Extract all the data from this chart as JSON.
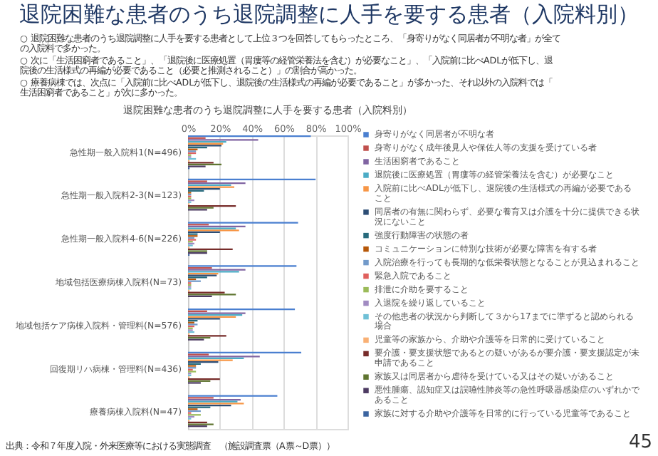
{
  "chart_data": {
    "type": "bar",
    "orientation": "horizontal",
    "title": "退院困難な患者のうち退院調整に人手を要する患者（入院料別）",
    "subtitle": "退院困難な患者のうち退院調整に人手を要する患者（入院料別）",
    "annotations": [
      "○ 退院困難な患者のうち退院調整に人手を要する患者として上位３つを回答してもらったところ、「身寄りがなく同居者が不明な者」が全ての入院料で多かった。",
      "○ 次に「生活困窮者であること」、「退院後に医療処置（胃瘻等の経管栄養法を含む）が必要なこと」、「入院前に比べADLが低下し、退院後の生活様式の再編が必要であること（必要と推測されること）」の割合が高かった。",
      "○ 療養病棟では、次点に「入院前に比べADLが低下し、退院後の生活様式の再編が必要であること」が多かった、それ以外の入院料では「生活困窮者であること」が次に多かった。",
      "出典：令和７年度入院・外来医療等における実態調査　（施設調査票（A票～D票））",
      "45"
    ],
    "categories": [
      "急性期一般入院料1(N=496)",
      "急性期一般入院料2-3(N=123)",
      "急性期一般入院料4-6(N=226)",
      "地域包括医療病棟入院料(N=73)",
      "地域包括ケア病棟入院料・管理料(N=576)",
      "回復期リハ病棟・管理料(N=436)",
      "療養病棟入院料(N=47)"
    ],
    "xlim": [
      0,
      100
    ],
    "xticks": [
      {
        "value": 0,
        "label": "0%"
      },
      {
        "value": 20,
        "label": "20%"
      },
      {
        "value": 40,
        "label": "40%"
      },
      {
        "value": 60,
        "label": "60%"
      },
      {
        "value": 80,
        "label": "80%"
      },
      {
        "value": 100,
        "label": "100%"
      }
    ],
    "grid": "x",
    "legend": "right",
    "series": [
      {
        "name": "身寄りがなく同居者が不明な者",
        "color": "#4a7fd0",
        "values": [
          77,
          80,
          69,
          68,
          67,
          71,
          56
        ]
      },
      {
        "name": "身寄りがなく成年後見人や保佐人等の支援を受けている者",
        "color": "#c0504d",
        "values": [
          11,
          12,
          13,
          15,
          12,
          13,
          16
        ]
      },
      {
        "name": "生活困窮者であること",
        "color": "#8064a2",
        "values": [
          44,
          36,
          36,
          36,
          36,
          45,
          33
        ]
      },
      {
        "name": "退院後に医療処置（胃瘻等の経管栄養法を含む）が必要なこと",
        "color": "#4bacc6",
        "values": [
          24,
          27,
          30,
          32,
          34,
          35,
          31
        ]
      },
      {
        "name": "入院前に比べADLが低下し、退院後の生活様式の再編が必要であること",
        "color": "#f79646",
        "values": [
          22,
          29,
          32,
          19,
          30,
          28,
          35
        ]
      },
      {
        "name": "同居者の有無に関わらず、必要な養育又は介護を十分に提供できる状況にないこと",
        "color": "#2c4d75",
        "values": [
          21,
          20,
          20,
          18,
          20,
          19,
          27
        ]
      },
      {
        "name": "強度行動障害の状態の者",
        "color": "#276a7c",
        "values": [
          12,
          10,
          6,
          12,
          6,
          8,
          14
        ]
      },
      {
        "name": "コミュニケーションに特別な技術が必要な障害を有する者",
        "color": "#b65708",
        "values": [
          6,
          2,
          6,
          5,
          4,
          5,
          6
        ]
      },
      {
        "name": "入院治療を行っても長期的な低栄養状態となることが見込まれること",
        "color": "#729aca",
        "values": [
          5,
          2,
          4,
          8,
          6,
          5,
          8
        ]
      },
      {
        "name": "緊急入院であること",
        "color": "#e0605d",
        "values": [
          5,
          2,
          5,
          2,
          4,
          3,
          2
        ]
      },
      {
        "name": "排泄に介助を要すること",
        "color": "#9bbb59",
        "values": [
          2,
          2,
          3,
          2,
          3,
          5,
          8
        ]
      },
      {
        "name": "入退院を繰り返していること",
        "color": "#a18bc2",
        "values": [
          2,
          4,
          4,
          2,
          3,
          2,
          4
        ]
      },
      {
        "name": "その他患者の状況から判断して３から17までに準ずると認められる場合",
        "color": "#6fc0d6",
        "values": [
          5,
          2,
          3,
          2,
          4,
          2,
          2
        ]
      },
      {
        "name": "児童等の家族から、介助や介護等を日常的に受けていること",
        "color": "#f9b074",
        "values": [
          1,
          1,
          1,
          1,
          1,
          1,
          1
        ]
      },
      {
        "name": "要介護・要支援状態であるとの疑いがあるが要介護・要支援認定が未申請であること",
        "color": "#772c2a",
        "values": [
          16,
          30,
          28,
          23,
          24,
          20,
          12
        ]
      },
      {
        "name": "家族又は同居者から虐待を受けている又はその疑いがあること",
        "color": "#5f7530",
        "values": [
          21,
          16,
          12,
          30,
          14,
          14,
          16
        ]
      },
      {
        "name": "悪性腫瘍、認知症又は誤嚥性肺炎等の急性呼吸器感染症のいずれかであること",
        "color": "#4d3b62",
        "values": [
          11,
          12,
          12,
          15,
          10,
          8,
          12
        ]
      },
      {
        "name": "家族に対する介助や介護等を日常的に行っている児童等であること",
        "color": "#3b64a0",
        "values": [
          1,
          0,
          1,
          0,
          0,
          0,
          0
        ]
      }
    ]
  }
}
